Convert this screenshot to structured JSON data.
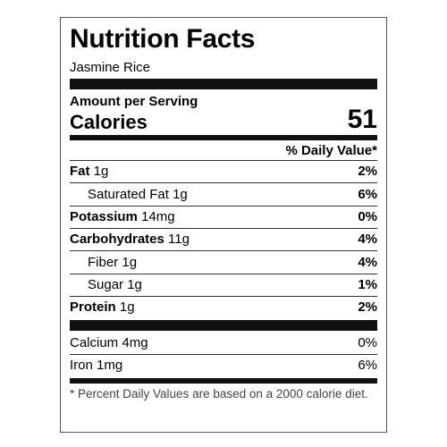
{
  "label": {
    "title": "Nutrition Facts",
    "food_name": "Jasmine Rice",
    "amount_per_serving": "Amount per Serving",
    "calories_label": "Calories",
    "calories_value": "51",
    "daily_value_header": "% Daily Value*",
    "nutrients": [
      {
        "name": "Fat",
        "amount": "1g",
        "pct": "2%"
      },
      {
        "name": "Saturated Fat",
        "amount": "1g",
        "pct": "6%"
      },
      {
        "name": "Potassium",
        "amount": "14mg",
        "pct": "0%"
      },
      {
        "name": "Carbohydrates",
        "amount": "11g",
        "pct": "4%"
      },
      {
        "name": "Fiber",
        "amount": "1g",
        "pct": "4%"
      },
      {
        "name": "Sugar",
        "amount": "1g",
        "pct": "1%"
      },
      {
        "name": "Protein",
        "amount": "1g",
        "pct": "2%"
      }
    ],
    "minerals": [
      {
        "name": "Calcium",
        "amount": "4mg",
        "pct": "0%"
      },
      {
        "name": "Iron",
        "amount": "1mg",
        "pct": "6%"
      }
    ],
    "footnote": "* Percent Daily Values are based on a 2000 calorie diet."
  }
}
